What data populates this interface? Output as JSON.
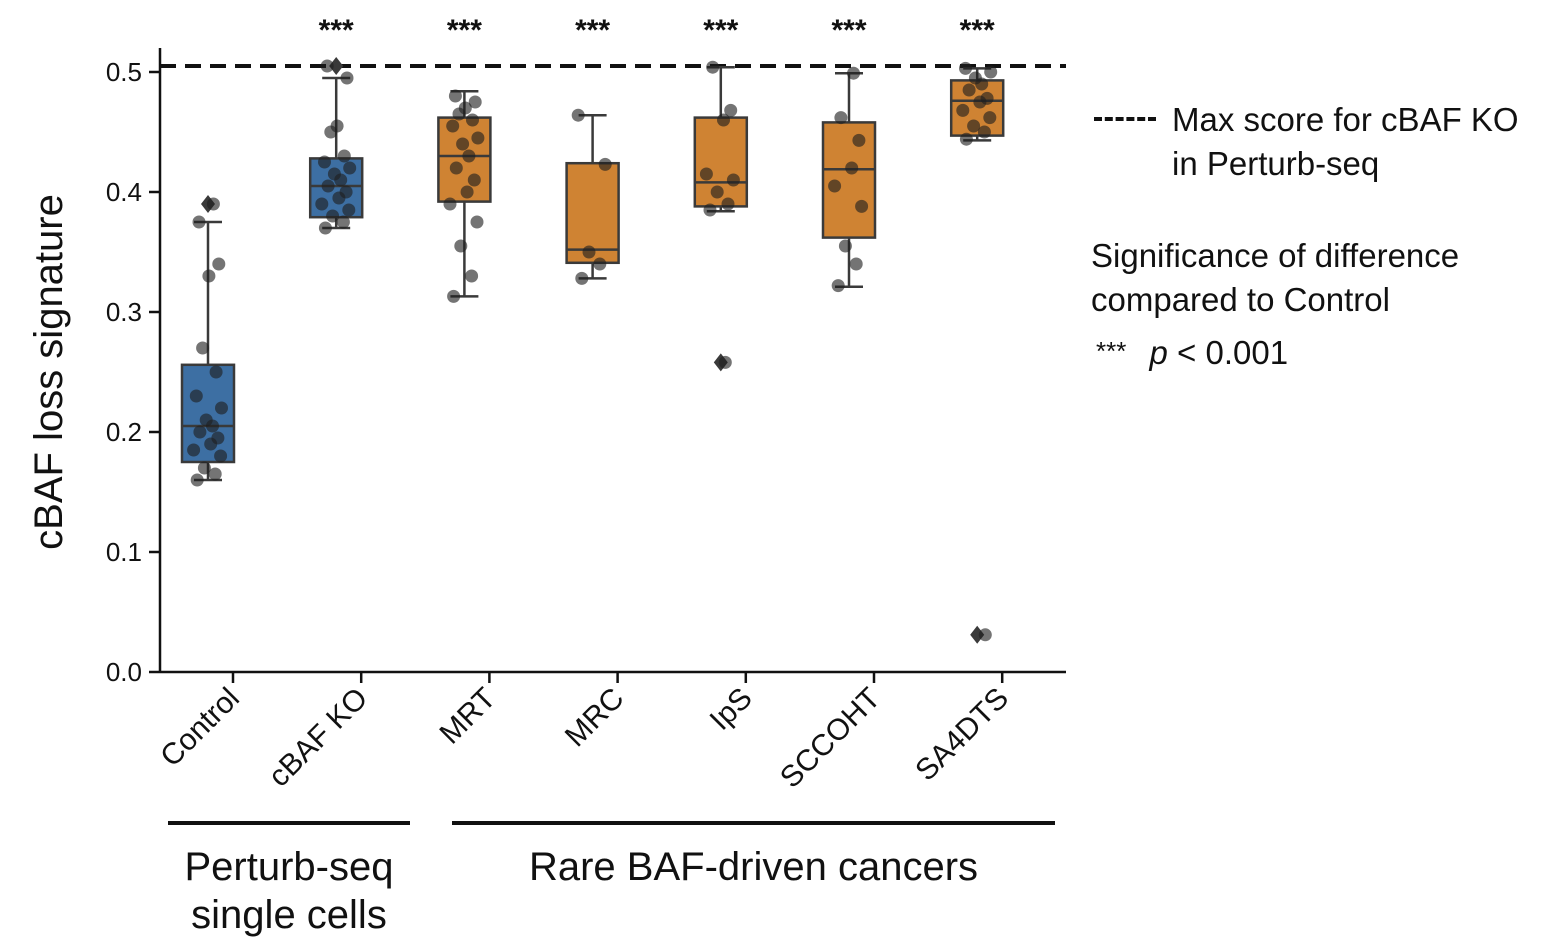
{
  "chart_data": {
    "type": "box",
    "ylabel": "cBAF loss signature",
    "ylim": [
      0.0,
      0.52
    ],
    "yticks": [
      "0.0",
      "0.1",
      "0.2",
      "0.3",
      "0.4",
      "0.5"
    ],
    "reference_line": {
      "value": 0.505,
      "label": "Max score for cBAF KO in Perturb-seq"
    },
    "significance_label": "***",
    "categories": [
      "Control",
      "cBAF KO",
      "MRT",
      "MRC",
      "IpS",
      "SCCOHT",
      "SA4DTS"
    ],
    "groups": [
      {
        "label": "Perturb-seq single cells",
        "categories": [
          "Control",
          "cBAF KO"
        ]
      },
      {
        "label": "Rare BAF-driven cancers",
        "categories": [
          "MRT",
          "MRC",
          "IpS",
          "SCCOHT",
          "SA4DTS"
        ]
      }
    ],
    "series": [
      {
        "name": "Control",
        "color": "#3d6fa3",
        "q1": 0.175,
        "median": 0.205,
        "q3": 0.256,
        "whisker_low": 0.16,
        "whisker_high": 0.375,
        "outliers": [
          0.39
        ],
        "significance": "",
        "points": [
          0.16,
          0.165,
          0.17,
          0.18,
          0.185,
          0.19,
          0.195,
          0.2,
          0.205,
          0.21,
          0.22,
          0.23,
          0.25,
          0.27,
          0.33,
          0.34,
          0.375,
          0.39
        ]
      },
      {
        "name": "cBAF KO",
        "color": "#3d6fa3",
        "q1": 0.379,
        "median": 0.405,
        "q3": 0.428,
        "whisker_low": 0.37,
        "whisker_high": 0.495,
        "outliers": [
          0.505
        ],
        "significance": "***",
        "points": [
          0.37,
          0.375,
          0.38,
          0.385,
          0.39,
          0.395,
          0.4,
          0.405,
          0.41,
          0.415,
          0.42,
          0.425,
          0.43,
          0.45,
          0.455,
          0.495,
          0.505
        ]
      },
      {
        "name": "MRT",
        "color": "#cf8333",
        "q1": 0.392,
        "median": 0.43,
        "q3": 0.462,
        "whisker_low": 0.313,
        "whisker_high": 0.484,
        "outliers": [],
        "significance": "***",
        "points": [
          0.313,
          0.33,
          0.355,
          0.375,
          0.39,
          0.4,
          0.41,
          0.42,
          0.43,
          0.44,
          0.445,
          0.455,
          0.46,
          0.465,
          0.47,
          0.475,
          0.48
        ]
      },
      {
        "name": "MRC",
        "color": "#cf8333",
        "q1": 0.341,
        "median": 0.352,
        "q3": 0.424,
        "whisker_low": 0.328,
        "whisker_high": 0.464,
        "outliers": [],
        "significance": "***",
        "points": [
          0.328,
          0.34,
          0.35,
          0.423,
          0.464
        ]
      },
      {
        "name": "IpS",
        "color": "#cf8333",
        "q1": 0.388,
        "median": 0.408,
        "q3": 0.462,
        "whisker_low": 0.384,
        "whisker_high": 0.504,
        "outliers": [
          0.258
        ],
        "significance": "***",
        "points": [
          0.385,
          0.39,
          0.4,
          0.41,
          0.415,
          0.46,
          0.468,
          0.504,
          0.258
        ]
      },
      {
        "name": "SCCOHT",
        "color": "#cf8333",
        "q1": 0.362,
        "median": 0.419,
        "q3": 0.458,
        "whisker_low": 0.321,
        "whisker_high": 0.499,
        "outliers": [],
        "significance": "***",
        "points": [
          0.322,
          0.34,
          0.355,
          0.388,
          0.405,
          0.42,
          0.443,
          0.462,
          0.499
        ]
      },
      {
        "name": "SA4DTS",
        "color": "#cf8333",
        "q1": 0.447,
        "median": 0.476,
        "q3": 0.493,
        "whisker_low": 0.443,
        "whisker_high": 0.503,
        "outliers": [
          0.031
        ],
        "significance": "***",
        "points": [
          0.444,
          0.45,
          0.455,
          0.462,
          0.468,
          0.475,
          0.478,
          0.485,
          0.49,
          0.495,
          0.5,
          0.503,
          0.031
        ]
      }
    ]
  },
  "legend": {
    "line1": "Max score for cBAF KO",
    "line2": "in Perturb-seq",
    "sig_title1": "Significance of difference",
    "sig_title2": "compared to Control",
    "sig_stars": "***",
    "sig_p": "p",
    "sig_rest": " < 0.001"
  }
}
